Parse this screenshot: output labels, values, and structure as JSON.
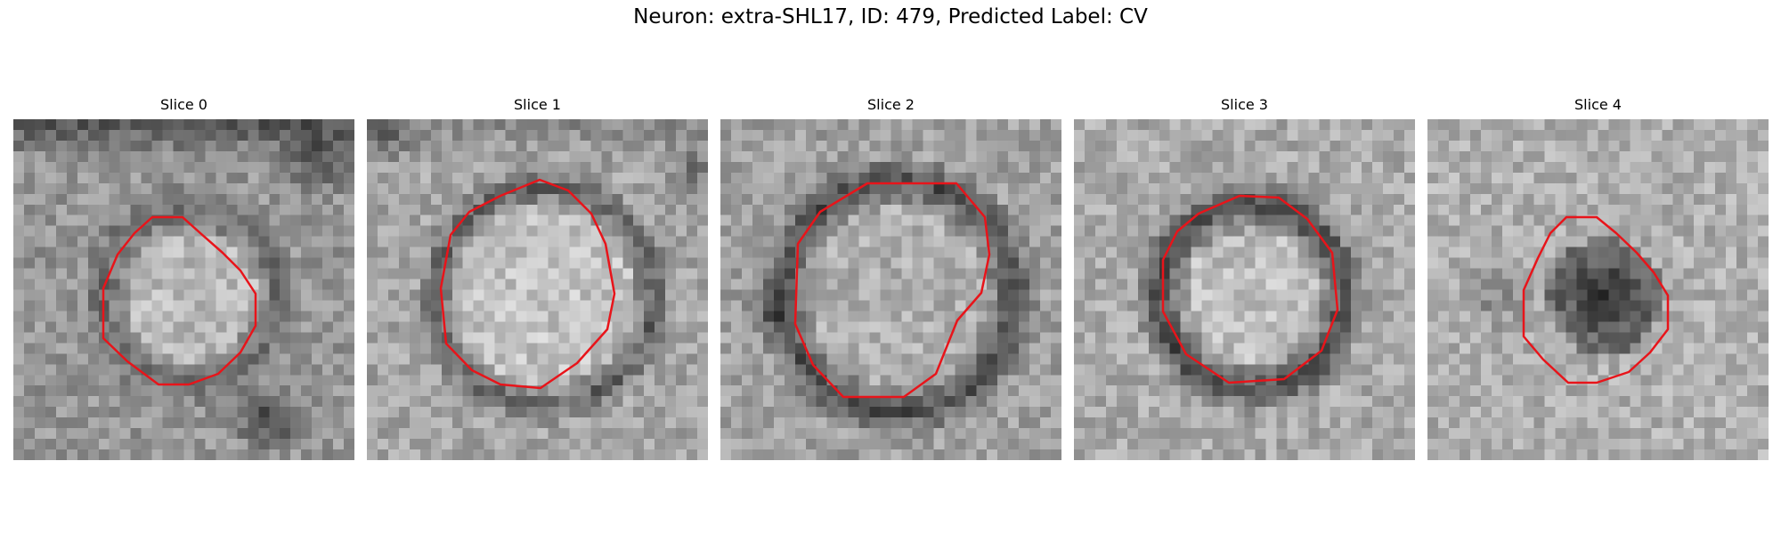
{
  "figure": {
    "title": "Neuron: extra-SHL17, ID: 479, Predicted Label: CV"
  },
  "colors": {
    "contour": "#e8141a",
    "background": "#ffffff"
  },
  "panels": [
    {
      "title": "Slice 0",
      "image": "grayscale microscopy patch with red segmentation contour"
    },
    {
      "title": "Slice 1",
      "image": "grayscale microscopy patch with red segmentation contour"
    },
    {
      "title": "Slice 2",
      "image": "grayscale microscopy patch with red segmentation contour"
    },
    {
      "title": "Slice 3",
      "image": "grayscale microscopy patch with red segmentation contour"
    },
    {
      "title": "Slice 4",
      "image": "grayscale microscopy patch with red segmentation contour"
    }
  ]
}
